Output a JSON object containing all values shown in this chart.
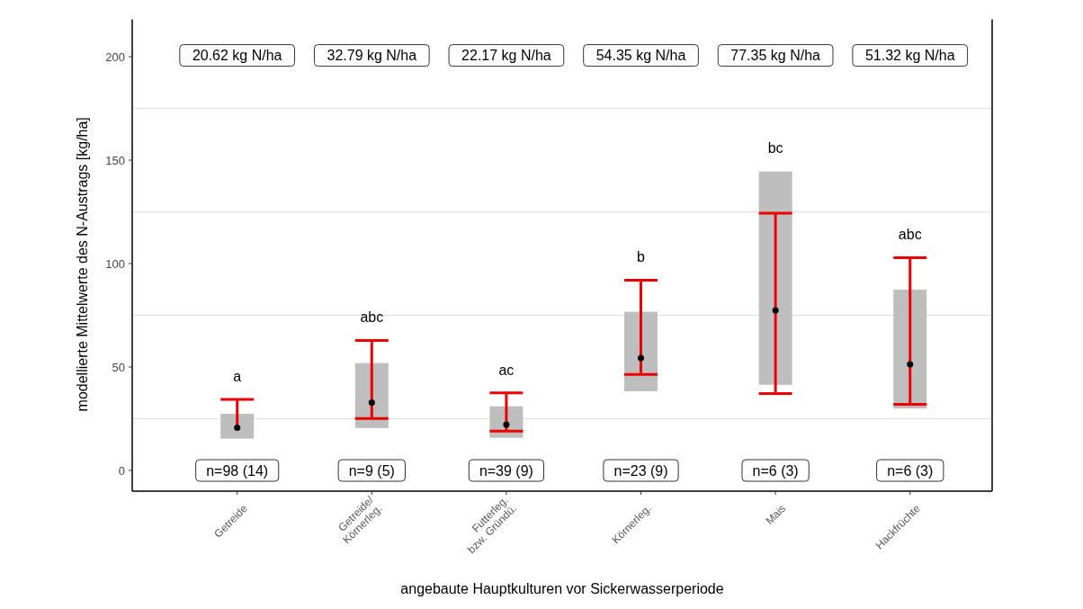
{
  "chart_data": {
    "type": "bar",
    "xlabel": "angebaute Hauptkulturen vor Sickerwasserperiode",
    "ylabel": "modellierte Mittelwerte des N-Austrags  [kg/ha]",
    "categories": [
      "Getreide",
      "Getreide/\nKörnerleg.",
      "Futterleg.\nbzw. Gründü.",
      "Körnerleg.",
      "Mais",
      "Hackfrüchte"
    ],
    "series": [
      {
        "color": "#bebebe",
        "base": [
          15.4,
          20.5,
          15.8,
          38.3,
          41.4,
          30.0
        ],
        "values": [
          12.0,
          31.4,
          15.2,
          38.4,
          103.1,
          57.4
        ]
      },
      {
        "type": "scatter",
        "color": "#000000",
        "x": [
          "Getreide",
          "Getreide/\nKörnerleg.",
          "Futterleg.\nbzw. Gründü.",
          "Körnerleg.",
          "Mais",
          "Hackfrüchte"
        ],
        "values": [
          20.62,
          32.79,
          22.17,
          54.35,
          77.35,
          51.32
        ],
        "errors": [
          [
            20.62,
            34.4
          ],
          [
            25.1,
            62.8
          ],
          [
            19.0,
            37.5
          ],
          [
            46.4,
            92.0
          ],
          [
            37.2,
            124.4
          ],
          [
            32.0,
            102.8
          ]
        ]
      }
    ],
    "ylim": [
      -10,
      218
    ],
    "yticks": [
      0,
      50,
      100,
      150,
      200
    ],
    "ref_lines": [
      {
        "axis": "y",
        "value": 25,
        "color": "#dedede"
      },
      {
        "axis": "y",
        "value": 75,
        "color": "#dedede"
      },
      {
        "axis": "y",
        "value": 125,
        "color": "#dedede"
      },
      {
        "axis": "y",
        "value": 175,
        "color": "#dedede"
      }
    ],
    "marker": "circle",
    "annotations": [
      "20.62 kg N/ha",
      "32.79 kg N/ha",
      "22.17 kg N/ha",
      "54.35 kg N/ha",
      "77.35 kg N/ha",
      "51.32 kg N/ha",
      "a",
      "abc",
      "ac",
      "b",
      "bc",
      "abc",
      "n=98 (14)",
      "n=9 (5)",
      "n=39 (9)",
      "n=23 (9)",
      "n=6 (3)",
      "n=6 (3)"
    ]
  }
}
